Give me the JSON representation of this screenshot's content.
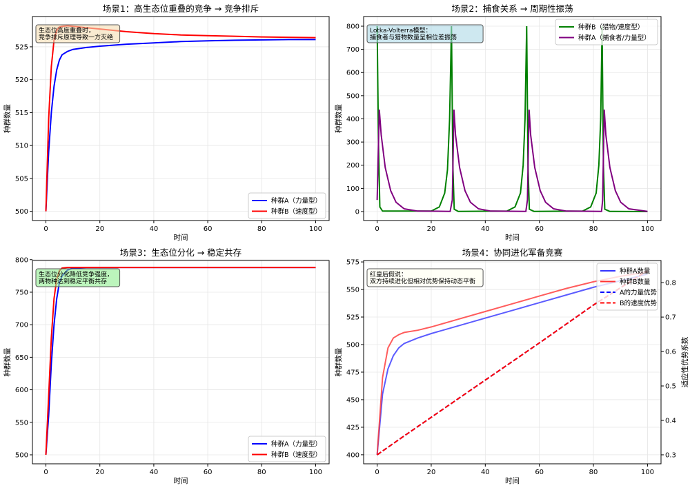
{
  "chart_data": [
    {
      "type": "line",
      "title": "场景1：高生态位重叠的竞争 → 竞争排斥",
      "xlabel": "时间",
      "ylabel": "种群数量",
      "xlim": [
        -5,
        105
      ],
      "ylim": [
        498.6,
        529.6
      ],
      "xticks": [
        0,
        20,
        40,
        60,
        80,
        100
      ],
      "yticks": [
        500,
        505,
        510,
        515,
        520,
        525
      ],
      "grid": true,
      "annotation": [
        "生态位高度重叠时，",
        "竞争排斥原理导致一方灭绝"
      ],
      "annotation_color": "#f5deb3",
      "legend_position": "lower-right",
      "x": [
        0,
        1,
        2,
        3,
        4,
        5,
        6,
        8,
        10,
        15,
        20,
        30,
        40,
        50,
        60,
        70,
        80,
        90,
        100
      ],
      "series": [
        {
          "name": "种群A（力量型）",
          "color": "#0000ff",
          "values": [
            500,
            509,
            515,
            519,
            521.5,
            523,
            523.8,
            524.3,
            524.6,
            524.9,
            525.1,
            525.4,
            525.6,
            525.8,
            525.9,
            526.0,
            526.05,
            526.1,
            526.1
          ]
        },
        {
          "name": "种群B（速度型）",
          "color": "#ff0000",
          "values": [
            500,
            514,
            522,
            526,
            527.5,
            528,
            528.1,
            528.2,
            528.1,
            527.9,
            527.7,
            527.3,
            527.0,
            526.8,
            526.7,
            526.6,
            526.5,
            526.45,
            526.4
          ]
        }
      ]
    },
    {
      "type": "line",
      "title": "场景2：捕食关系 → 周期性振荡",
      "xlabel": "时间",
      "ylabel": "种群数量",
      "xlim": [
        -5,
        105
      ],
      "ylim": [
        -38.7,
        841.6
      ],
      "xticks": [
        0,
        20,
        40,
        60,
        80,
        100
      ],
      "yticks": [
        0,
        100,
        200,
        300,
        400,
        500,
        600,
        700,
        800
      ],
      "grid": true,
      "annotation": [
        "Lotka-Volterra模型：",
        "捕食者与猎物数量呈相位差振荡"
      ],
      "annotation_color": "#add8e6",
      "legend_position": "upper-right",
      "series": [
        {
          "name": "种群B（猎物/速度型）",
          "color": "#008000",
          "points": [
            [
              0,
              800
            ],
            [
              0.5,
              300
            ],
            [
              1,
              20
            ],
            [
              2,
              2
            ],
            [
              20,
              2
            ],
            [
              23,
              20
            ],
            [
              25,
              80
            ],
            [
              26,
              180
            ],
            [
              26.8,
              400
            ],
            [
              27.5,
              800
            ],
            [
              28,
              200
            ],
            [
              28.5,
              10
            ],
            [
              30,
              1
            ],
            [
              48,
              2
            ],
            [
              51,
              20
            ],
            [
              53,
              80
            ],
            [
              54,
              200
            ],
            [
              54.7,
              400
            ],
            [
              55.3,
              800
            ],
            [
              55.8,
              200
            ],
            [
              56.3,
              10
            ],
            [
              58,
              1
            ],
            [
              76,
              2
            ],
            [
              79,
              20
            ],
            [
              81,
              80
            ],
            [
              82,
              200
            ],
            [
              82.7,
              400
            ],
            [
              83.2,
              800
            ],
            [
              83.7,
              200
            ],
            [
              84.2,
              10
            ],
            [
              86,
              1
            ],
            [
              100,
              0
            ]
          ]
        },
        {
          "name": "种群A（捕食者/力量型）",
          "color": "#800080",
          "points": [
            [
              0,
              50
            ],
            [
              0.8,
              440
            ],
            [
              1.5,
              330
            ],
            [
              3,
              190
            ],
            [
              5,
              90
            ],
            [
              7,
              40
            ],
            [
              10,
              12
            ],
            [
              15,
              2
            ],
            [
              27,
              1
            ],
            [
              27.8,
              50
            ],
            [
              28.4,
              440
            ],
            [
              29,
              330
            ],
            [
              30.5,
              190
            ],
            [
              32.5,
              90
            ],
            [
              34.5,
              40
            ],
            [
              37.5,
              12
            ],
            [
              42,
              2
            ],
            [
              55,
              1
            ],
            [
              55.6,
              50
            ],
            [
              56.2,
              440
            ],
            [
              56.8,
              330
            ],
            [
              58.3,
              190
            ],
            [
              60.3,
              90
            ],
            [
              62.3,
              40
            ],
            [
              65.3,
              12
            ],
            [
              70,
              2
            ],
            [
              83,
              1
            ],
            [
              83.4,
              50
            ],
            [
              84,
              440
            ],
            [
              84.6,
              330
            ],
            [
              86.1,
              190
            ],
            [
              88.1,
              90
            ],
            [
              90.1,
              40
            ],
            [
              93.1,
              12
            ],
            [
              100,
              1
            ]
          ]
        }
      ]
    },
    {
      "type": "line",
      "title": "场景3：生态位分化 → 稳定共存",
      "xlabel": "时间",
      "ylabel": "种群数量",
      "xlim": [
        -5,
        105
      ],
      "ylim": [
        486.2,
        798.7
      ],
      "xticks": [
        0,
        20,
        40,
        60,
        80,
        100
      ],
      "yticks": [
        500,
        550,
        600,
        650,
        700,
        750,
        800
      ],
      "grid": true,
      "annotation": [
        "生态位分化降低竞争强度，",
        "两物种达到稳定平衡共存"
      ],
      "annotation_color": "#90ee90",
      "legend_position": "lower-right",
      "x": [
        0,
        1,
        2,
        3,
        4,
        5,
        6,
        8,
        10,
        15,
        20,
        30,
        40,
        50,
        60,
        70,
        80,
        90,
        100
      ],
      "series": [
        {
          "name": "种群A（力量型）",
          "color": "#0000ff",
          "values": [
            500,
            560,
            640,
            700,
            740,
            765,
            775,
            784,
            787,
            788,
            788,
            788,
            788,
            788,
            788,
            788,
            788,
            788,
            788
          ]
        },
        {
          "name": "种群B（速度型）",
          "color": "#ff0000",
          "values": [
            500,
            590,
            680,
            740,
            770,
            783,
            787,
            788,
            788,
            788,
            788,
            788,
            788,
            788,
            788,
            788,
            788,
            788,
            788
          ]
        }
      ]
    },
    {
      "type": "line",
      "title": "场景4：协同进化军备竞赛",
      "xlabel": "时间",
      "ylabel": "种群数量",
      "ylabel_right": "适应性优势系数",
      "xlim": [
        -5,
        105
      ],
      "ylim": [
        391.8,
        576.3
      ],
      "ylim_right": [
        0.2739,
        0.8643
      ],
      "xticks": [
        0,
        20,
        40,
        60,
        80,
        100
      ],
      "yticks": [
        400,
        425,
        450,
        475,
        500,
        525,
        550,
        575
      ],
      "yticks_right": [
        0.3,
        0.4,
        0.5,
        0.6,
        0.7,
        0.8
      ],
      "grid": true,
      "annotation": [
        "红皇后假说：",
        "双方持续进化但相对优势保持动态平衡"
      ],
      "annotation_color": "#fffff0",
      "legend_position": "upper-right",
      "x": [
        0,
        2,
        4,
        6,
        8,
        10,
        15,
        20,
        30,
        40,
        50,
        60,
        70,
        80,
        90,
        100
      ],
      "series": [
        {
          "name": "种群A数量",
          "color": "#3333ff",
          "axis": "left",
          "dash": false,
          "values": [
            400,
            455,
            478,
            490,
            497,
            501,
            506,
            510,
            517,
            524,
            531,
            538,
            545,
            552,
            558,
            564
          ]
        },
        {
          "name": "种群B数量",
          "color": "#ff3333",
          "axis": "left",
          "dash": false,
          "values": [
            400,
            470,
            497,
            506,
            509,
            511,
            513,
            516,
            523,
            530,
            537,
            544,
            551,
            557,
            562,
            566
          ]
        },
        {
          "name": "A的力量优势",
          "color": "#0000ff",
          "axis": "right",
          "dash": true,
          "values": [
            0.3,
            0.311,
            0.322,
            0.333,
            0.344,
            0.355,
            0.382,
            0.409,
            0.463,
            0.517,
            0.571,
            0.625,
            0.68,
            0.735,
            0.785,
            0.835
          ]
        },
        {
          "name": "B的速度优势",
          "color": "#ff0000",
          "axis": "right",
          "dash": true,
          "values": [
            0.3,
            0.311,
            0.322,
            0.333,
            0.344,
            0.355,
            0.382,
            0.409,
            0.463,
            0.517,
            0.571,
            0.625,
            0.68,
            0.735,
            0.785,
            0.835
          ]
        }
      ]
    }
  ]
}
